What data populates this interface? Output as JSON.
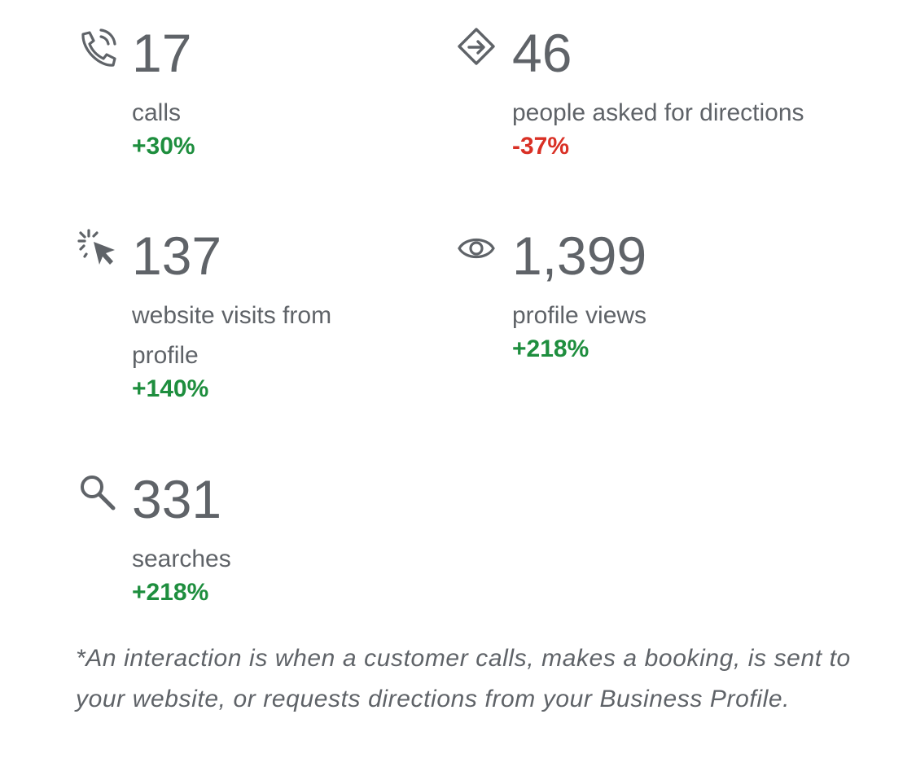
{
  "stats": [
    {
      "icon": "phone-icon",
      "value": "17",
      "label": "calls",
      "change": "+30%",
      "trend": "positive"
    },
    {
      "icon": "directions-icon",
      "value": "46",
      "label": "people asked for directions",
      "change": "-37%",
      "trend": "negative"
    },
    {
      "icon": "click-icon",
      "value": "137",
      "label": "website visits from profile",
      "change": "+140%",
      "trend": "positive"
    },
    {
      "icon": "eye-icon",
      "value": "1,399",
      "label": "profile views",
      "change": "+218%",
      "trend": "positive"
    },
    {
      "icon": "search-icon",
      "value": "331",
      "label": "searches",
      "change": "+218%",
      "trend": "positive"
    }
  ],
  "footnote": "*An interaction is when a customer calls, makes a booking, is sent to your website, or requests directions from your Business Profile.",
  "colors": {
    "text": "#5f6368",
    "positive": "#1e8e3e",
    "negative": "#d93025"
  }
}
